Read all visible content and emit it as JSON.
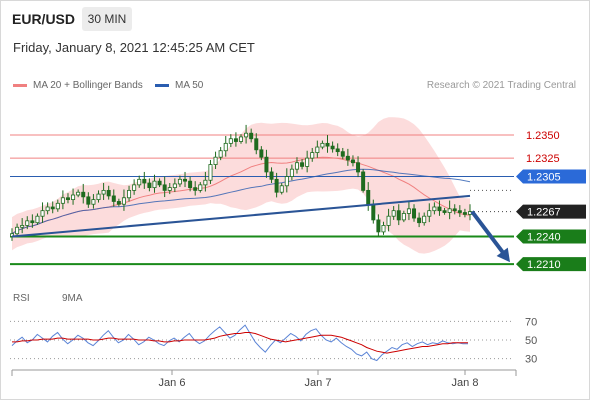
{
  "header": {
    "symbol": "EUR/USD",
    "timeframe": "30 MIN",
    "datetime": "Friday, January 8, 2021 12:45:25 AM CET"
  },
  "legend": {
    "ma20_label": "MA 20 + Bollinger Bands",
    "ma50_label": "MA 50",
    "credit": "Research © 2021 Trading Central",
    "rsi_label": "RSI",
    "rsi9ma_label": "9MA"
  },
  "colors": {
    "resistance": "#f08080",
    "resistance_text": "#cc0000",
    "pivot": "#2a5db0",
    "pivot_tag": "#2b6ad8",
    "support": "#1a8a1a",
    "support_tag": "#1a7d1a",
    "price_tag": "#222222",
    "bollinger_fill": "#fcd6d6",
    "ma50": "#2a5db0",
    "trendline": "#2a5496",
    "candle": "#1f6b1f",
    "rsi": "#5b84d6",
    "rsi9ma": "#cc0000"
  },
  "chart_data": [
    {
      "type": "candlestick",
      "instrument": "EUR/USD",
      "interval": "30 MIN",
      "x_tick_labels": [
        "Jan 6",
        "Jan 7",
        "Jan 8"
      ],
      "ylim": [
        1.2195,
        1.2375
      ],
      "levels": [
        {
          "value": 1.235,
          "label": "1.2350",
          "kind": "resistance"
        },
        {
          "value": 1.2325,
          "label": "1.2325",
          "kind": "resistance"
        },
        {
          "value": 1.2305,
          "label": "1.2305",
          "kind": "pivot"
        },
        {
          "value": 1.2267,
          "label": "1.2267",
          "kind": "last_price"
        },
        {
          "value": 1.224,
          "label": "1.2240",
          "kind": "support"
        },
        {
          "value": 1.221,
          "label": "1.2210",
          "kind": "support"
        }
      ],
      "close_series": [
        1.2243,
        1.225,
        1.2252,
        1.2257,
        1.2255,
        1.2262,
        1.2268,
        1.2272,
        1.227,
        1.2276,
        1.2282,
        1.228,
        1.2285,
        1.2288,
        1.2283,
        1.2275,
        1.228,
        1.2286,
        1.229,
        1.2284,
        1.2278,
        1.2275,
        1.2282,
        1.229,
        1.2296,
        1.2302,
        1.2298,
        1.2293,
        1.23,
        1.2296,
        1.229,
        1.2293,
        1.2297,
        1.2302,
        1.23,
        1.2293,
        1.229,
        1.2296,
        1.2301,
        1.2318,
        1.2326,
        1.2333,
        1.2341,
        1.2346,
        1.2343,
        1.2348,
        1.2352,
        1.2346,
        1.2334,
        1.2326,
        1.231,
        1.2302,
        1.2288,
        1.2295,
        1.2305,
        1.2313,
        1.232,
        1.2316,
        1.2325,
        1.2331,
        1.2337,
        1.2341,
        1.2338,
        1.2335,
        1.2332,
        1.2327,
        1.2323,
        1.232,
        1.231,
        1.229,
        1.2275,
        1.2258,
        1.2245,
        1.2252,
        1.2262,
        1.2268,
        1.2258,
        1.2265,
        1.227,
        1.226,
        1.2255,
        1.2262,
        1.2268,
        1.2272,
        1.2268,
        1.2266,
        1.227,
        1.2268,
        1.2266,
        1.2264,
        1.2267
      ],
      "trendline": {
        "from": {
          "i": 0,
          "y": 1.224
        },
        "to": {
          "i": 90,
          "y": 1.2284
        }
      },
      "projection": {
        "from": {
          "i": 91,
          "y": 1.2267
        },
        "to": {
          "i": 102,
          "y": 1.221
        }
      }
    },
    {
      "type": "line",
      "title": "RSI",
      "ylim": [
        20,
        80
      ],
      "y_ticks": [
        70,
        50,
        30
      ],
      "series": [
        {
          "name": "RSI",
          "values": [
            44,
            49,
            53,
            47,
            50,
            56,
            52,
            48,
            54,
            58,
            51,
            46,
            50,
            55,
            52,
            47,
            44,
            49,
            55,
            60,
            53,
            47,
            50,
            56,
            51,
            45,
            48,
            53,
            50,
            46,
            44,
            49,
            52,
            48,
            53,
            57,
            50,
            46,
            49,
            55,
            60,
            64,
            58,
            52,
            55,
            61,
            66,
            57,
            48,
            42,
            37,
            44,
            50,
            47,
            52,
            57,
            54,
            49,
            56,
            60,
            62,
            55,
            50,
            48,
            52,
            47,
            43,
            40,
            35,
            33,
            37,
            30,
            28,
            34,
            38,
            42,
            40,
            45,
            47,
            43,
            46,
            48,
            45,
            47,
            46,
            49,
            47,
            46,
            47,
            46,
            46
          ]
        },
        {
          "name": "9MA",
          "values": [
            48,
            48,
            49,
            49,
            50,
            50,
            51,
            51,
            51,
            52,
            52,
            51,
            51,
            51,
            51,
            51,
            50,
            50,
            51,
            52,
            52,
            51,
            51,
            51,
            51,
            50,
            50,
            50,
            49,
            49,
            48,
            48,
            49,
            49,
            50,
            50,
            50,
            50,
            50,
            51,
            52,
            54,
            55,
            56,
            57,
            57,
            58,
            58,
            57,
            55,
            53,
            51,
            50,
            49,
            48,
            49,
            50,
            51,
            52,
            53,
            54,
            55,
            55,
            55,
            54,
            53,
            51,
            49,
            47,
            45,
            42,
            40,
            38,
            37,
            36,
            37,
            38,
            39,
            40,
            41,
            42,
            43,
            43,
            44,
            45,
            46,
            46,
            47,
            47,
            47,
            47
          ]
        }
      ]
    }
  ]
}
